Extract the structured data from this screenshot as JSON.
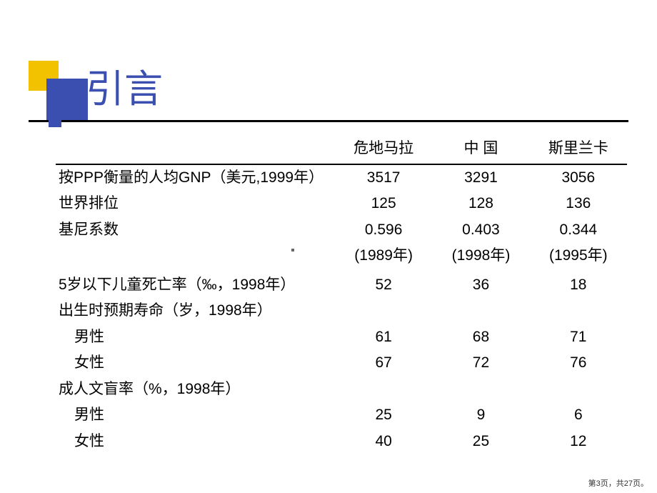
{
  "title": {
    "text": "引言",
    "color": "#3a4fb0",
    "fontsize": 54
  },
  "decor": {
    "gold": "#f2c200",
    "blue": "#3a4fb0",
    "small_blue": "#3a4fb0"
  },
  "table": {
    "columns": [
      "危地马拉",
      "中 国",
      "斯里兰卡"
    ],
    "rows": [
      {
        "label": "按PPP衡量的人均GNP（美元,1999年）",
        "vals": [
          "3517",
          "3291",
          "3056"
        ]
      },
      {
        "label": "世界排位",
        "vals": [
          "125",
          "128",
          "136"
        ]
      },
      {
        "label": "基尼系数",
        "vals": [
          "0.596",
          "0.403",
          "0.344"
        ]
      },
      {
        "label": "",
        "vals": [
          "(1989年)",
          "(1998年)",
          "(1995年)"
        ]
      },
      {
        "label": "",
        "vals": [
          "",
          "",
          ""
        ]
      },
      {
        "label": "5岁以下儿童死亡率（‰，1998年）",
        "vals": [
          "52",
          "36",
          "18"
        ]
      },
      {
        "label": "出生时预期寿命（岁，1998年）",
        "vals": [
          "",
          "",
          ""
        ]
      },
      {
        "label": "男性",
        "indent": true,
        "vals": [
          "61",
          "68",
          "71"
        ]
      },
      {
        "label": "女性",
        "indent": true,
        "vals": [
          "67",
          "72",
          "76"
        ]
      },
      {
        "label": "成人文盲率（%，1998年）",
        "vals": [
          "",
          "",
          ""
        ]
      },
      {
        "label": "男性",
        "indent": true,
        "vals": [
          "25",
          "9",
          "6"
        ]
      },
      {
        "label": "女性",
        "indent": true,
        "vals": [
          "40",
          "25",
          "12"
        ]
      }
    ]
  },
  "footer": "第3页，共27页。"
}
